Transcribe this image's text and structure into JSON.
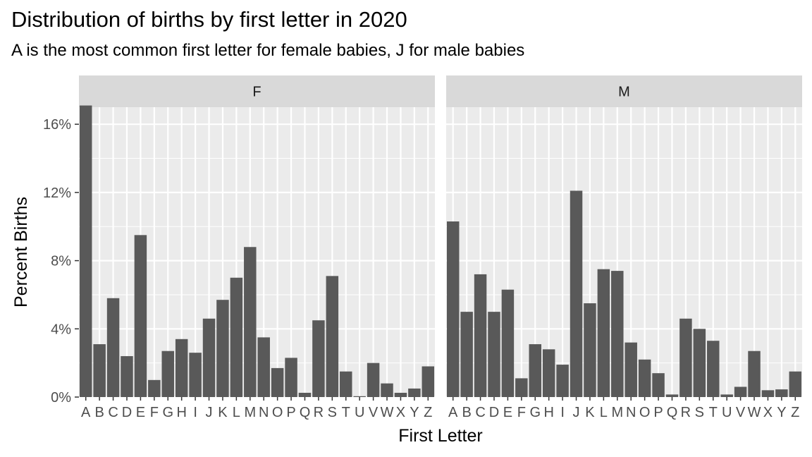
{
  "chart_data": {
    "type": "bar",
    "title": "Distribution of births by first letter in 2020",
    "subtitle": "A is the most common first letter for female babies, J for male babies",
    "xlabel": "First Letter",
    "ylabel": "Percent Births",
    "ylim": [
      0,
      17.0
    ],
    "yticks": [
      0,
      4,
      8,
      12,
      16
    ],
    "ytick_labels": [
      "0%",
      "4%",
      "8%",
      "12%",
      "16%"
    ],
    "grid": true,
    "categories": [
      "A",
      "B",
      "C",
      "D",
      "E",
      "F",
      "G",
      "H",
      "I",
      "J",
      "K",
      "L",
      "M",
      "N",
      "O",
      "P",
      "Q",
      "R",
      "S",
      "T",
      "U",
      "V",
      "W",
      "X",
      "Y",
      "Z"
    ],
    "facets": [
      {
        "label": "F",
        "values": [
          17.1,
          3.1,
          5.8,
          2.4,
          9.5,
          1.0,
          2.7,
          3.4,
          2.6,
          4.6,
          5.7,
          7.0,
          8.8,
          3.5,
          1.7,
          2.3,
          0.25,
          4.5,
          7.1,
          1.5,
          0.05,
          2.0,
          0.8,
          0.25,
          0.5,
          1.8
        ]
      },
      {
        "label": "M",
        "values": [
          10.3,
          5.0,
          7.2,
          5.0,
          6.3,
          1.1,
          3.1,
          2.8,
          1.9,
          12.1,
          5.5,
          7.5,
          7.4,
          3.2,
          2.2,
          1.4,
          0.15,
          4.6,
          4.0,
          3.3,
          0.15,
          0.6,
          2.7,
          0.4,
          0.45,
          1.5
        ]
      }
    ],
    "colors": {
      "bar": "#595959",
      "panel": "#ebebeb",
      "strip": "#d9d9d9",
      "grid": "#ffffff",
      "text": "#4d4d4d"
    }
  }
}
